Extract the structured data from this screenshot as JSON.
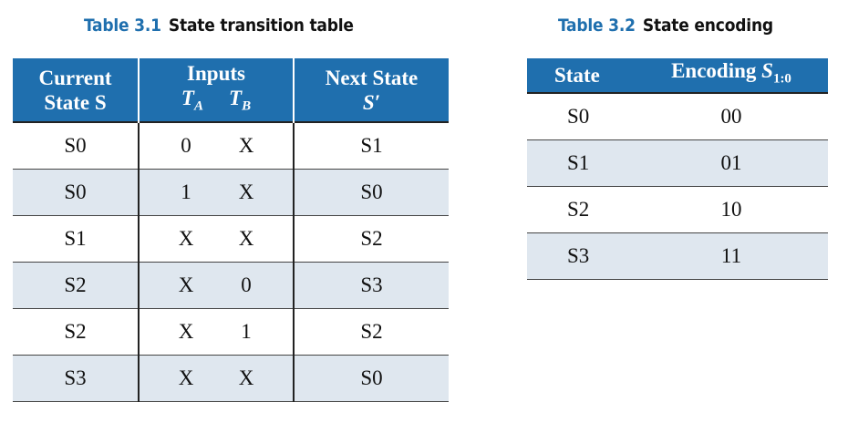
{
  "table1": {
    "caption_number": "Table 3.1",
    "caption_title": "State transition table",
    "header": {
      "current_line1": "Current",
      "current_line2": "State S",
      "inputs": "Inputs",
      "ta": "T",
      "ta_sub": "A",
      "tb": "T",
      "tb_sub": "B",
      "next_line1": "Next State",
      "next_line2": "S′"
    },
    "rows": [
      {
        "current": "S0",
        "ta": "0",
        "tb": "X",
        "next": "S1"
      },
      {
        "current": "S0",
        "ta": "1",
        "tb": "X",
        "next": "S0"
      },
      {
        "current": "S1",
        "ta": "X",
        "tb": "X",
        "next": "S2"
      },
      {
        "current": "S2",
        "ta": "X",
        "tb": "0",
        "next": "S3"
      },
      {
        "current": "S2",
        "ta": "X",
        "tb": "1",
        "next": "S2"
      },
      {
        "current": "S3",
        "ta": "X",
        "tb": "X",
        "next": "S0"
      }
    ]
  },
  "table2": {
    "caption_number": "Table 3.2",
    "caption_title": "State encoding",
    "header": {
      "state": "State",
      "encoding": "Encoding ",
      "encoding_var": "S",
      "encoding_sub": "1:0"
    },
    "rows": [
      {
        "state": "S0",
        "encoding": "00"
      },
      {
        "state": "S1",
        "encoding": "01"
      },
      {
        "state": "S2",
        "encoding": "10"
      },
      {
        "state": "S3",
        "encoding": "11"
      }
    ]
  },
  "colors": {
    "header_blue": "#1f6fae",
    "row_shade": "#dfe7ef"
  }
}
